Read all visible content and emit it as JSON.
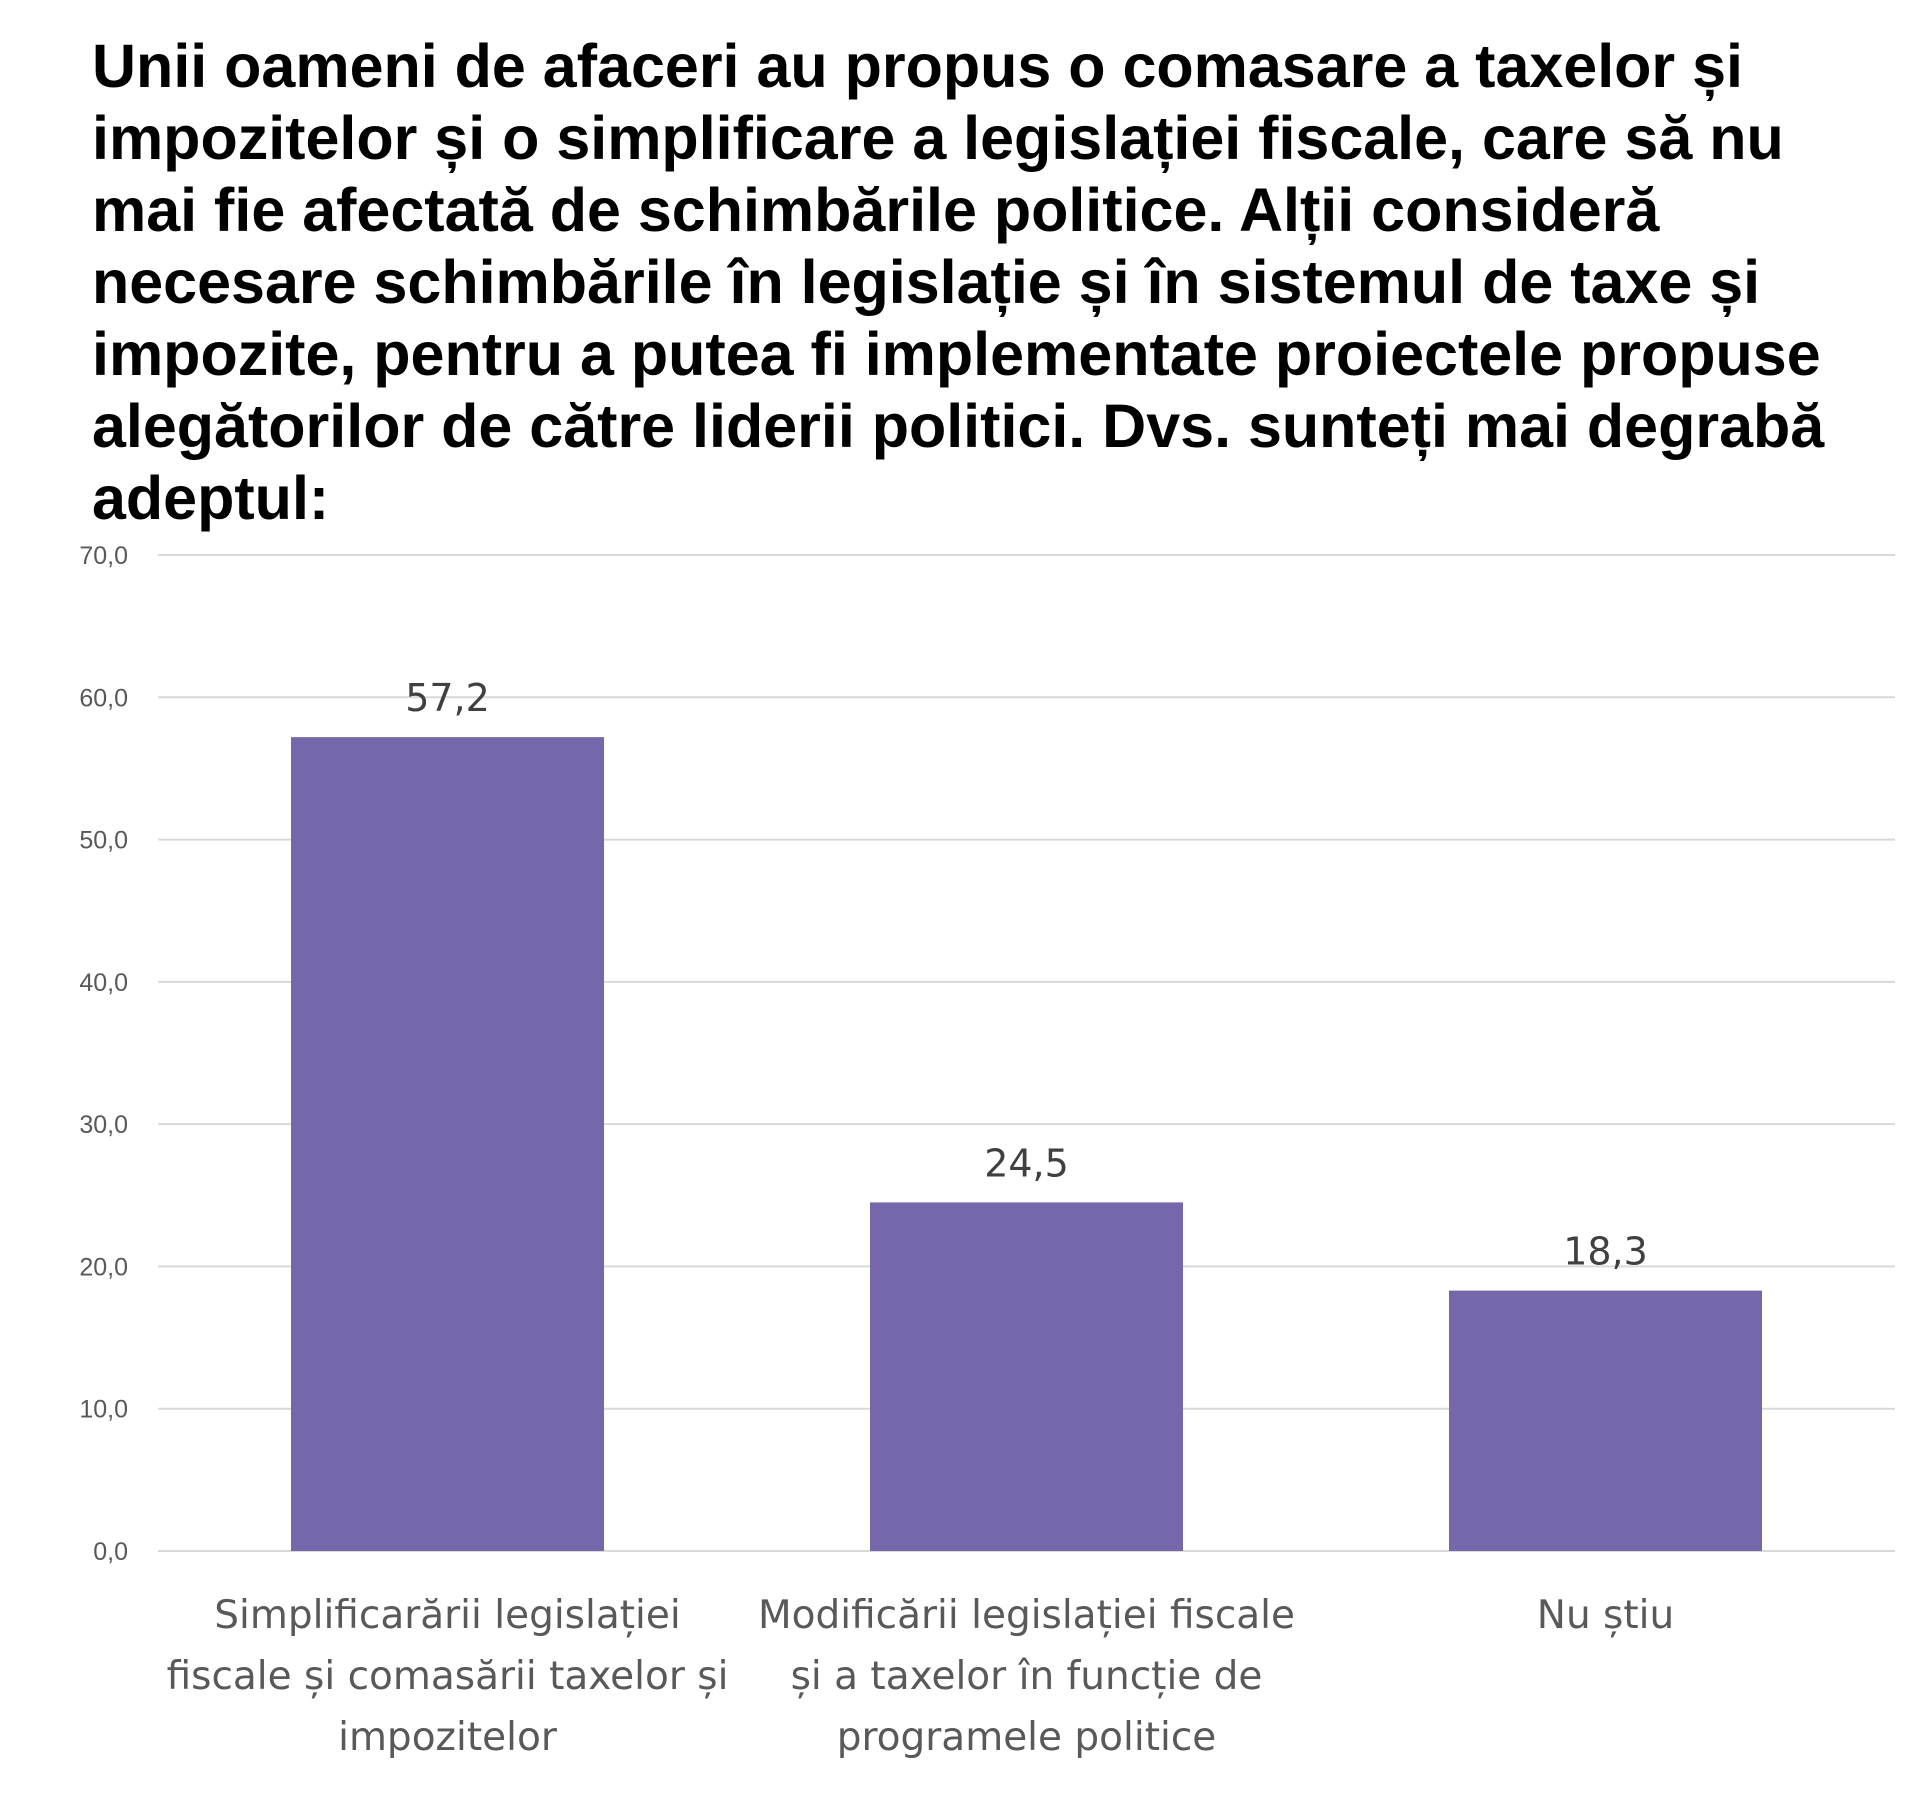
{
  "chart_data": {
    "type": "bar",
    "title": "Unii oameni de afaceri au propus o comasare a taxelor și impozitelor și o simplificare a legislației fiscale, care să nu mai fie afectată de schimbările politice. Alții consideră necesare schimbările în legislație și în sistemul de taxe și impozite, pentru a putea fi implementate proiectele propuse alegătorilor de către liderii politici. Dvs. sunteți mai degrabă adeptul:",
    "categories": [
      [
        "Simplificarării legislației",
        "fiscale și comasării taxelor și",
        "impozitelor"
      ],
      [
        "Modificării legislației fiscale",
        "și a taxelor în funcție de",
        "programele politice"
      ],
      [
        "Nu știu"
      ]
    ],
    "values": [
      57.2,
      24.5,
      18.3
    ],
    "value_labels": [
      "57,2",
      "24,5",
      "18,3"
    ],
    "ylim": [
      0,
      70
    ],
    "yticks": [
      0,
      10,
      20,
      30,
      40,
      50,
      60,
      70
    ],
    "ytick_labels": [
      "0,0",
      "10,0",
      "20,0",
      "30,0",
      "40,0",
      "50,0",
      "60,0",
      "70,0"
    ],
    "grid": true,
    "legend": "none",
    "colors": {
      "bar": "#7667AA",
      "grid": "#D9D9D9"
    }
  }
}
